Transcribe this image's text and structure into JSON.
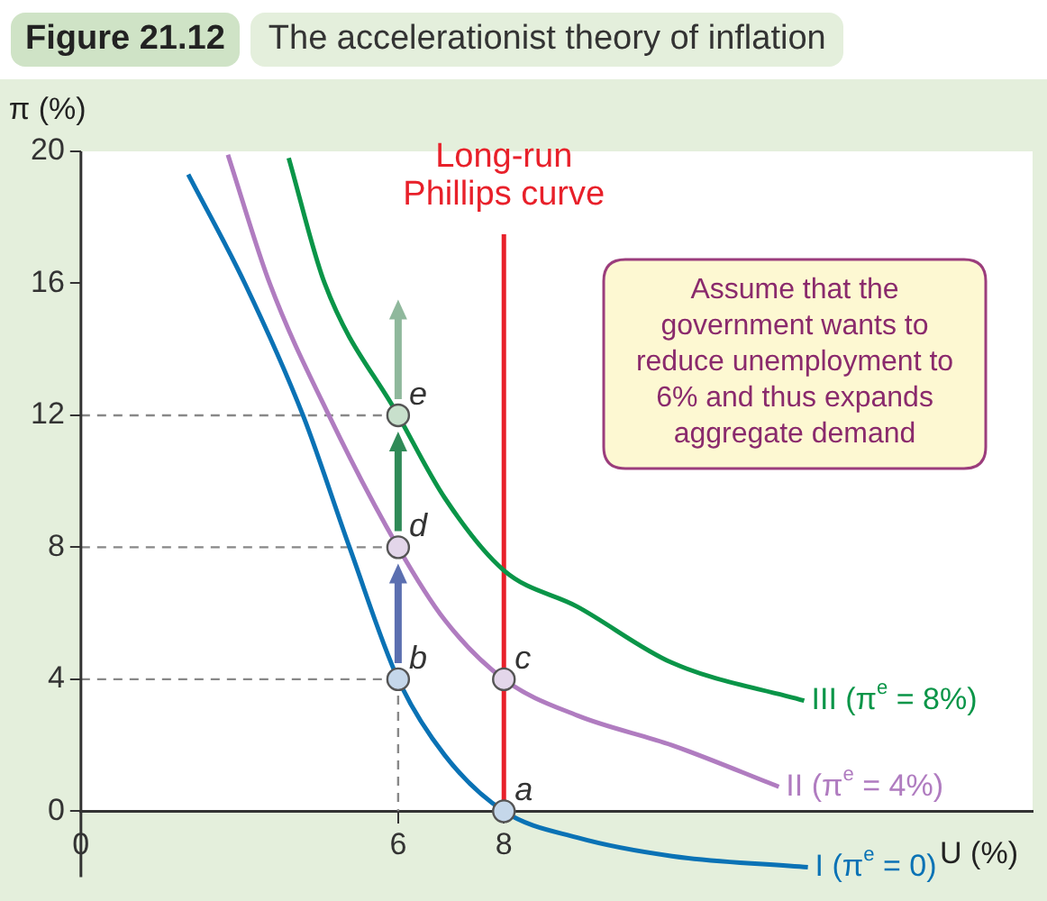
{
  "chart_data": {
    "type": "line",
    "title": "Figure 21.12",
    "subtitle": "The accelerationist theory of inflation",
    "xlabel": "U (%)",
    "ylabel": "π (%)",
    "xlim": [
      0,
      18
    ],
    "xticks": [
      0,
      6,
      8
    ],
    "ylim": [
      -2,
      20
    ],
    "yticks": [
      0,
      4,
      8,
      12,
      16,
      20
    ],
    "grid": false,
    "legend": false,
    "line_style": "solid",
    "marker": "none",
    "series": [
      {
        "name": "I (π$^{e}$ = 0)",
        "color": "#0a72b5",
        "x": [
          2.03,
          3.1,
          4.2,
          5.08,
          6,
          6.88,
          8,
          9.39,
          11.18,
          13.75
        ],
        "values": [
          19.3,
          16,
          12,
          8,
          4,
          1.7,
          0,
          -0.8,
          -1.36,
          -1.7
        ]
      },
      {
        "name": "II (π$^{e}$ = 4%)",
        "color": "#b07cc0",
        "x": [
          2.78,
          3.57,
          4.69,
          6,
          6.88,
          8,
          9.39,
          11.18,
          13.2
        ],
        "values": [
          19.9,
          16,
          12,
          8,
          5.8,
          4,
          2.9,
          2.0,
          0.74
        ]
      },
      {
        "name": "III (π$^{e}$ = 8%)",
        "color": "#0a9548",
        "x": [
          3.93,
          4.61,
          6,
          6.88,
          8,
          9.39,
          11.18,
          13.68
        ],
        "values": [
          19.8,
          16,
          12,
          9.5,
          7.3,
          6.2,
          4.5,
          3.35
        ]
      },
      {
        "type": "scatter",
        "marker": "circle",
        "x": [
          8,
          6,
          8,
          6,
          6
        ],
        "values": [
          0,
          4,
          4,
          8,
          12
        ],
        "value_labels": [
          "a",
          "b",
          "c",
          "d",
          "e"
        ],
        "colors": [
          "#c5d7ea",
          "#c5d7ea",
          "#e3d6ea",
          "#e3d6ea",
          "#c8e0cc"
        ]
      }
    ],
    "ref_lines": [
      {
        "axis": "x",
        "value": 8,
        "label": "Long-run Phillips curve",
        "color": "#e8202a"
      }
    ],
    "annotations": [
      "Assume that the government wants to reduce unemployment to 6% and thus expands aggregate demand"
    ]
  }
}
